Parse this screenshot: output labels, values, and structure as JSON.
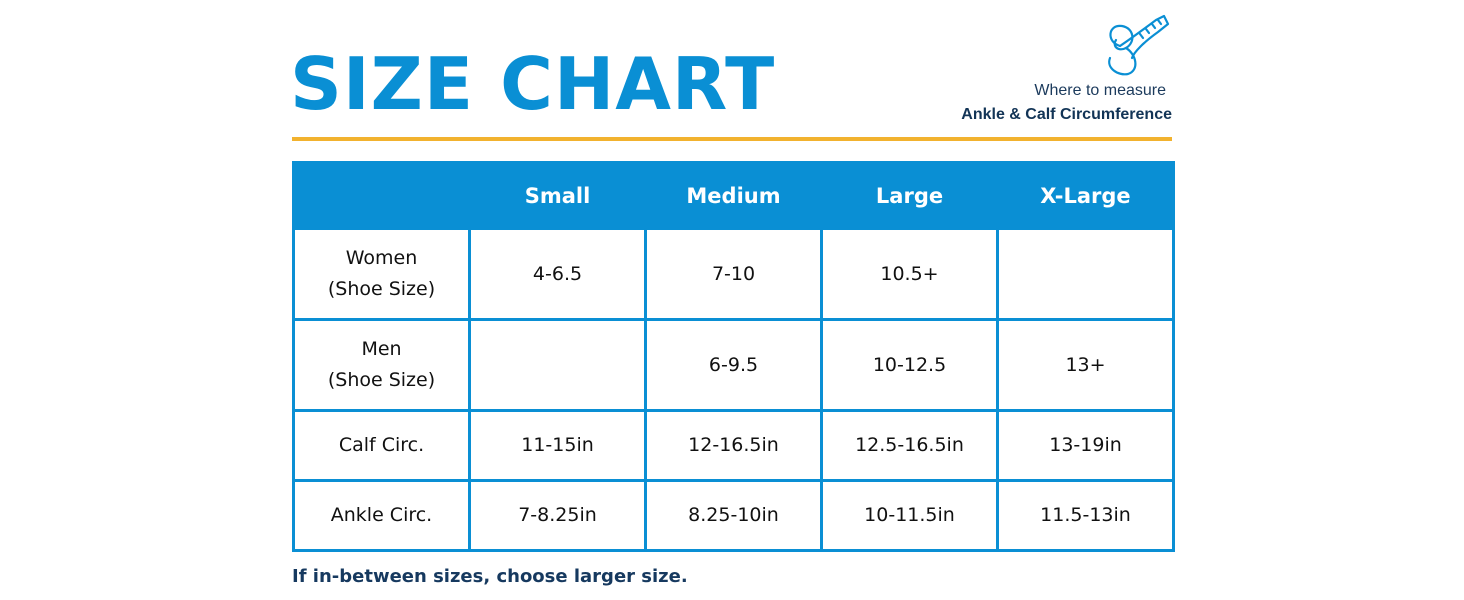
{
  "title": "SIZE CHART",
  "measure_hint": {
    "line1": "Where to measure",
    "line2": "Ankle & Calf Circumference",
    "icon": "measuring-tape-icon"
  },
  "table": {
    "headers": [
      "",
      "Small",
      "Medium",
      "Large",
      "X-Large"
    ],
    "rows": [
      {
        "label": [
          "Women",
          "(Shoe Size)"
        ],
        "cells": [
          "4-6.5",
          "7-10",
          "10.5+",
          ""
        ]
      },
      {
        "label": [
          "Men",
          "(Shoe Size)"
        ],
        "cells": [
          "",
          "6-9.5",
          "10-12.5",
          "13+"
        ]
      },
      {
        "label": [
          "Calf Circ."
        ],
        "cells": [
          "11-15in",
          "12-16.5in",
          "12.5-16.5in",
          "13-19in"
        ]
      },
      {
        "label": [
          "Ankle Circ."
        ],
        "cells": [
          "7-8.25in",
          "8.25-10in",
          "10-11.5in",
          "11.5-13in"
        ]
      }
    ]
  },
  "footnote": "If in-between sizes, choose larger size.",
  "colors": {
    "accent_blue": "#0a8fd4",
    "rule_gold": "#f2b22e",
    "dark_navy": "#16395f"
  }
}
